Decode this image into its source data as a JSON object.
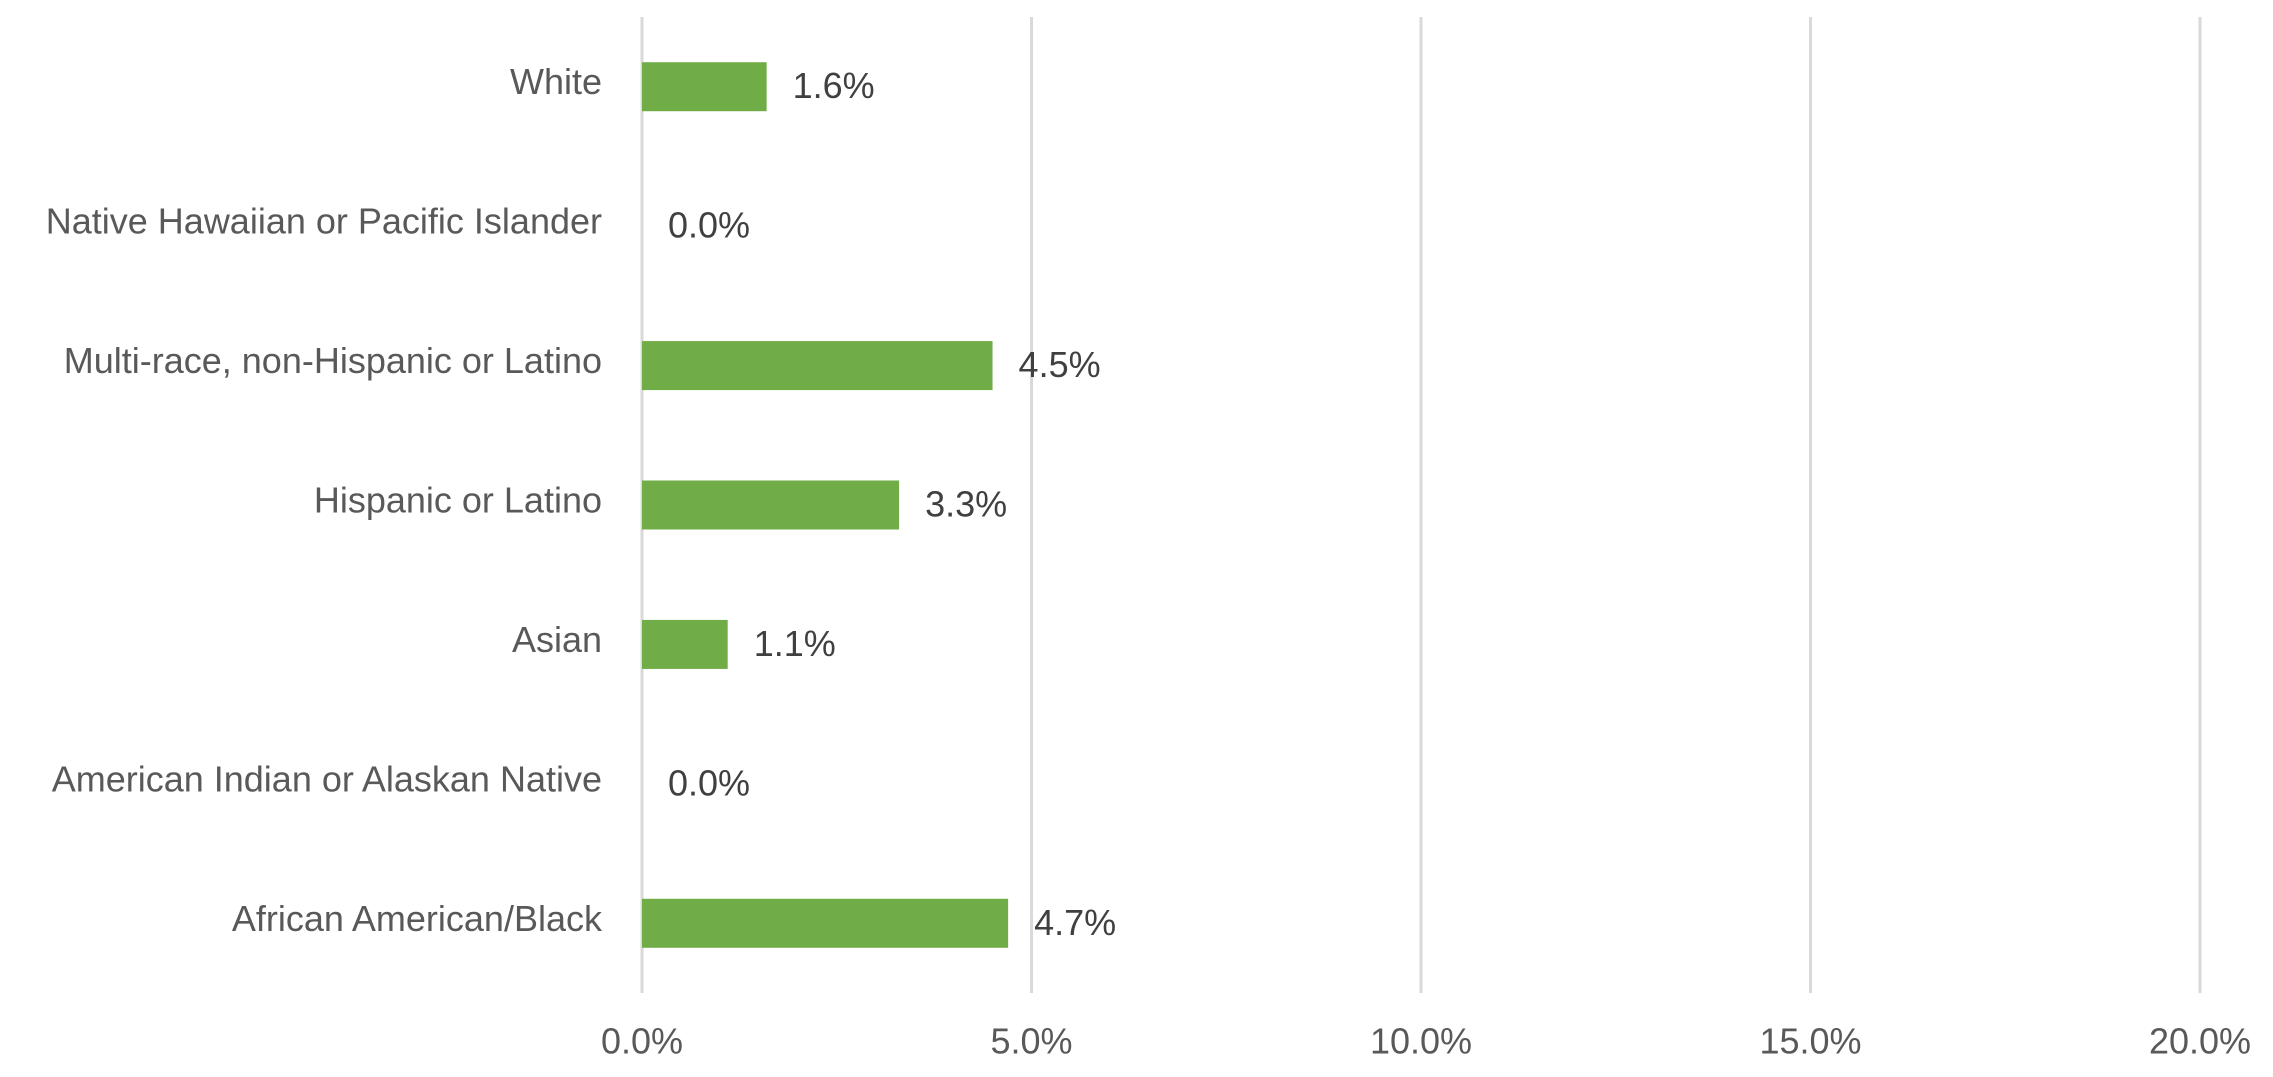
{
  "chart_data": {
    "type": "bar",
    "orientation": "horizontal",
    "categories": [
      "White",
      "Native Hawaiian or Pacific Islander",
      "Multi-race, non-Hispanic or Latino",
      "Hispanic or Latino",
      "Asian",
      "American Indian or Alaskan Native",
      "African American/Black"
    ],
    "values": [
      1.6,
      0.0,
      4.5,
      3.3,
      1.1,
      0.0,
      4.7
    ],
    "value_labels": [
      "1.6%",
      "0.0%",
      "4.5%",
      "3.3%",
      "1.1%",
      "0.0%",
      "4.7%"
    ],
    "color": "#70ad47",
    "xlim": [
      0,
      20
    ],
    "xticks": [
      {
        "value": 0,
        "label": "0.0%"
      },
      {
        "value": 5,
        "label": "5.0%"
      },
      {
        "value": 10,
        "label": "10.0%"
      },
      {
        "value": 15,
        "label": "15.0%"
      },
      {
        "value": 20,
        "label": "20.0%"
      }
    ],
    "grid": true
  }
}
